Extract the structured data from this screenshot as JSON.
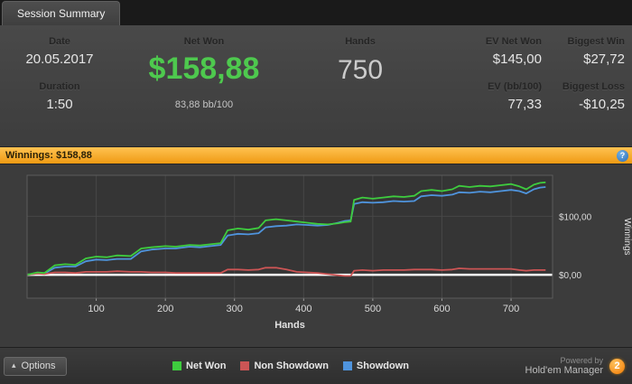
{
  "tab": {
    "label": "Session Summary"
  },
  "colors": {
    "accent_orange": "#f7a823",
    "positive_green": "#4ec94e",
    "window_bg": "#3c3c3c",
    "zero_line": "#ffffff"
  },
  "stats": {
    "date_label": "Date",
    "date_value": "20.05.2017",
    "duration_label": "Duration",
    "duration_value": "1:50",
    "net_won_label": "Net Won",
    "net_won_value": "$158,88",
    "net_won_sub": "83,88 bb/100",
    "hands_label": "Hands",
    "hands_value": "750",
    "ev_net_won_label": "EV Net Won",
    "ev_net_won_value": "$145,00",
    "ev_bb_label": "EV (bb/100)",
    "ev_bb_value": "77,33",
    "biggest_win_label": "Biggest Win",
    "biggest_win_value": "$27,72",
    "biggest_loss_label": "Biggest Loss",
    "biggest_loss_value": "-$10,25"
  },
  "winnings_bar": {
    "label": "Winnings: $158,88",
    "help_icon": "?"
  },
  "chart_data": {
    "type": "line",
    "title": "Winnings: $158,88",
    "xlabel": "Hands",
    "ylabel": "Winnings",
    "xlim": [
      0,
      760
    ],
    "ylim": [
      -40,
      170
    ],
    "x_ticks": [
      100,
      200,
      300,
      400,
      500,
      600,
      700
    ],
    "y_ticks": [
      {
        "value": 100,
        "label": "$100,00"
      },
      {
        "value": 0,
        "label": "$0,00"
      }
    ],
    "zero_line_color": "#ffffff",
    "grid": true,
    "legend_position": "bottom",
    "series": [
      {
        "name": "Net Won",
        "color": "#3ecc3e",
        "points": [
          [
            0,
            0
          ],
          [
            15,
            4
          ],
          [
            25,
            3
          ],
          [
            40,
            16
          ],
          [
            55,
            18
          ],
          [
            70,
            17
          ],
          [
            85,
            28
          ],
          [
            100,
            31
          ],
          [
            115,
            30
          ],
          [
            130,
            33
          ],
          [
            150,
            32
          ],
          [
            165,
            45
          ],
          [
            180,
            47
          ],
          [
            200,
            49
          ],
          [
            215,
            48
          ],
          [
            235,
            51
          ],
          [
            250,
            50
          ],
          [
            265,
            52
          ],
          [
            280,
            54
          ],
          [
            290,
            76
          ],
          [
            305,
            79
          ],
          [
            320,
            77
          ],
          [
            335,
            80
          ],
          [
            345,
            93
          ],
          [
            360,
            95
          ],
          [
            375,
            93
          ],
          [
            390,
            91
          ],
          [
            405,
            89
          ],
          [
            420,
            87
          ],
          [
            435,
            86
          ],
          [
            450,
            88
          ],
          [
            460,
            90
          ],
          [
            468,
            91
          ],
          [
            473,
            128
          ],
          [
            485,
            132
          ],
          [
            500,
            130
          ],
          [
            515,
            132
          ],
          [
            530,
            134
          ],
          [
            545,
            133
          ],
          [
            560,
            135
          ],
          [
            570,
            143
          ],
          [
            585,
            145
          ],
          [
            600,
            143
          ],
          [
            615,
            146
          ],
          [
            625,
            152
          ],
          [
            640,
            150
          ],
          [
            655,
            152
          ],
          [
            670,
            151
          ],
          [
            685,
            153
          ],
          [
            700,
            155
          ],
          [
            712,
            151
          ],
          [
            722,
            146
          ],
          [
            733,
            154
          ],
          [
            742,
            157
          ],
          [
            750,
            158
          ]
        ]
      },
      {
        "name": "Non Showdown",
        "color": "#cc5555",
        "points": [
          [
            0,
            0
          ],
          [
            15,
            2
          ],
          [
            25,
            1
          ],
          [
            40,
            4
          ],
          [
            55,
            4
          ],
          [
            70,
            3
          ],
          [
            85,
            5
          ],
          [
            100,
            5
          ],
          [
            115,
            5
          ],
          [
            130,
            6
          ],
          [
            150,
            5
          ],
          [
            165,
            5
          ],
          [
            180,
            4
          ],
          [
            200,
            4
          ],
          [
            215,
            3
          ],
          [
            235,
            3
          ],
          [
            250,
            3
          ],
          [
            265,
            3
          ],
          [
            280,
            3
          ],
          [
            290,
            9
          ],
          [
            305,
            9
          ],
          [
            320,
            8
          ],
          [
            335,
            9
          ],
          [
            345,
            12
          ],
          [
            360,
            12
          ],
          [
            375,
            9
          ],
          [
            390,
            5
          ],
          [
            405,
            4
          ],
          [
            420,
            3
          ],
          [
            435,
            1
          ],
          [
            450,
            -1
          ],
          [
            460,
            -2
          ],
          [
            468,
            -2
          ],
          [
            473,
            7
          ],
          [
            485,
            8
          ],
          [
            500,
            7
          ],
          [
            515,
            8
          ],
          [
            530,
            8
          ],
          [
            545,
            8
          ],
          [
            560,
            9
          ],
          [
            570,
            9
          ],
          [
            585,
            9
          ],
          [
            600,
            8
          ],
          [
            615,
            9
          ],
          [
            625,
            11
          ],
          [
            640,
            10
          ],
          [
            655,
            10
          ],
          [
            670,
            10
          ],
          [
            685,
            10
          ],
          [
            700,
            10
          ],
          [
            712,
            8
          ],
          [
            722,
            7
          ],
          [
            733,
            8
          ],
          [
            742,
            8
          ],
          [
            750,
            8
          ]
        ]
      },
      {
        "name": "Showdown",
        "color": "#4f94dd",
        "points": [
          [
            0,
            0
          ],
          [
            15,
            2
          ],
          [
            25,
            2
          ],
          [
            40,
            12
          ],
          [
            55,
            14
          ],
          [
            70,
            14
          ],
          [
            85,
            23
          ],
          [
            100,
            26
          ],
          [
            115,
            25
          ],
          [
            130,
            27
          ],
          [
            150,
            27
          ],
          [
            165,
            40
          ],
          [
            180,
            43
          ],
          [
            200,
            45
          ],
          [
            215,
            45
          ],
          [
            235,
            48
          ],
          [
            250,
            47
          ],
          [
            265,
            49
          ],
          [
            280,
            51
          ],
          [
            290,
            67
          ],
          [
            305,
            70
          ],
          [
            320,
            69
          ],
          [
            335,
            71
          ],
          [
            345,
            81
          ],
          [
            360,
            83
          ],
          [
            375,
            84
          ],
          [
            390,
            86
          ],
          [
            405,
            85
          ],
          [
            420,
            84
          ],
          [
            435,
            85
          ],
          [
            450,
            89
          ],
          [
            460,
            92
          ],
          [
            468,
            93
          ],
          [
            473,
            121
          ],
          [
            485,
            124
          ],
          [
            500,
            123
          ],
          [
            515,
            124
          ],
          [
            530,
            126
          ],
          [
            545,
            125
          ],
          [
            560,
            126
          ],
          [
            570,
            134
          ],
          [
            585,
            136
          ],
          [
            600,
            135
          ],
          [
            615,
            137
          ],
          [
            625,
            141
          ],
          [
            640,
            140
          ],
          [
            655,
            142
          ],
          [
            670,
            141
          ],
          [
            685,
            143
          ],
          [
            700,
            145
          ],
          [
            712,
            143
          ],
          [
            722,
            139
          ],
          [
            733,
            146
          ],
          [
            742,
            149
          ],
          [
            750,
            150
          ]
        ]
      }
    ]
  },
  "footer": {
    "options_label": "Options",
    "options_caret": "▴",
    "legend": [
      {
        "label": "Net Won",
        "color": "#3ecc3e"
      },
      {
        "label": "Non Showdown",
        "color": "#cc5555"
      },
      {
        "label": "Showdown",
        "color": "#4f94dd"
      }
    ],
    "powered_by": "Powered by",
    "brand": "Hold'em Manager",
    "brand_badge": "2"
  }
}
